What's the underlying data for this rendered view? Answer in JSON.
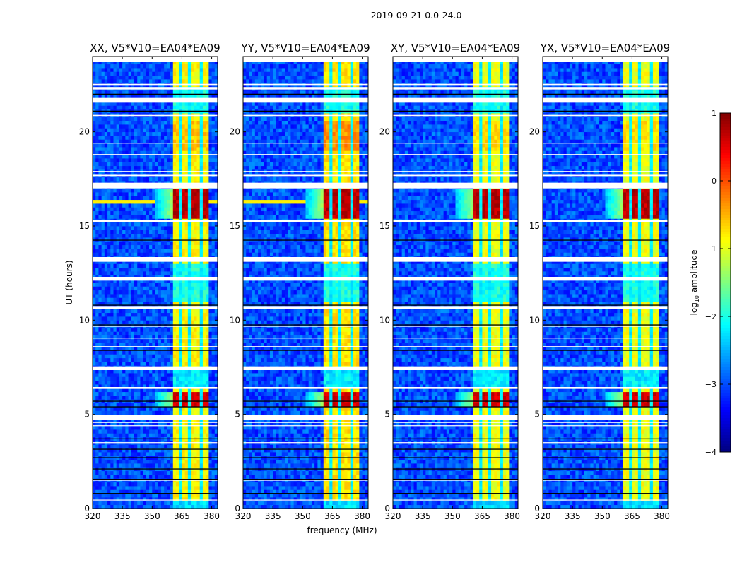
{
  "figure": {
    "suptitle": "2019-09-21 0.0-24.0",
    "ylabel": "UT (hours)",
    "xlabel": "frequency (MHz)"
  },
  "chart_data": {
    "type": "heatmap",
    "xlim": [
      320,
      383
    ],
    "ylim": [
      0,
      24
    ],
    "xticks": [
      "320",
      "335",
      "350",
      "365",
      "380"
    ],
    "xtick_values": [
      320,
      335,
      350,
      365,
      380
    ],
    "yticks": [
      "0",
      "5",
      "10",
      "15",
      "20"
    ],
    "ytick_values": [
      0,
      5,
      10,
      15,
      20
    ],
    "colorbar": {
      "label_main": "log",
      "label_sub": "10",
      "label_rest": " amplitude",
      "range": [
        -4,
        1
      ],
      "ticks": [
        "1",
        "0",
        "−1",
        "−2",
        "−3",
        "−4"
      ],
      "tick_values": [
        1,
        0,
        -1,
        -2,
        -3,
        -4
      ],
      "colormap": "jet"
    },
    "model": {
      "background_level": -3.0,
      "band_freq": [
        360,
        379
      ],
      "band_dividers_mhz": [
        364.3,
        369.3,
        374.3
      ],
      "divider_level": -2.2,
      "data_end_hour": 23.7,
      "bright_segments": [
        {
          "t": [
            15.45,
            17.0
          ],
          "level": 0.7
        },
        {
          "t": [
            5.45,
            6.15
          ],
          "level": 0.6
        }
      ],
      "weak_segments": [
        {
          "t": [
            21.0,
            22.3
          ],
          "level": -2.0
        },
        {
          "t": [
            10.9,
            13.0
          ],
          "level": -2.0
        },
        {
          "t": [
            6.45,
            7.35
          ],
          "level": -2.2
        },
        {
          "t": [
            0.0,
            0.4
          ],
          "level": -2.3
        }
      ],
      "flagged_white": [
        [
          22.45,
          22.55
        ],
        [
          22.25,
          22.38
        ],
        [
          21.55,
          21.8
        ],
        [
          20.84,
          20.9
        ],
        [
          19.38,
          19.42
        ],
        [
          18.78,
          18.82
        ],
        [
          17.88,
          17.92
        ],
        [
          17.65,
          17.72
        ],
        [
          17.0,
          17.3
        ],
        [
          15.2,
          15.33
        ],
        [
          13.1,
          13.35
        ],
        [
          12.1,
          12.3
        ],
        [
          10.6,
          10.75
        ],
        [
          9.65,
          9.7
        ],
        [
          9.03,
          9.07
        ],
        [
          8.58,
          8.62
        ],
        [
          7.35,
          7.55
        ],
        [
          6.35,
          6.45
        ],
        [
          4.7,
          4.95
        ],
        [
          4.55,
          4.59
        ],
        [
          4.38,
          4.42
        ],
        [
          3.48,
          3.52
        ],
        [
          1.48,
          1.52
        ],
        [
          0.43,
          0.47
        ]
      ],
      "flagged_black": [
        22.0,
        21.1,
        14.25,
        10.8,
        9.75,
        8.4,
        5.7,
        5.4,
        3.7,
        3.15,
        2.7,
        2.1,
        1.55,
        0.8
      ]
    },
    "panels": [
      {
        "title": "XX, V5*V10=EA04*EA09",
        "band_level": -0.85,
        "orange_level": -0.6
      },
      {
        "title": "YY, V5*V10=EA04*EA09",
        "band_level": -0.75,
        "orange_level": -0.35
      },
      {
        "title": "XY, V5*V10=EA04*EA09",
        "band_level": -0.95,
        "orange_level": -0.7
      },
      {
        "title": "YX, V5*V10=EA04*EA09",
        "band_level": -0.95,
        "orange_level": -0.75
      }
    ]
  }
}
